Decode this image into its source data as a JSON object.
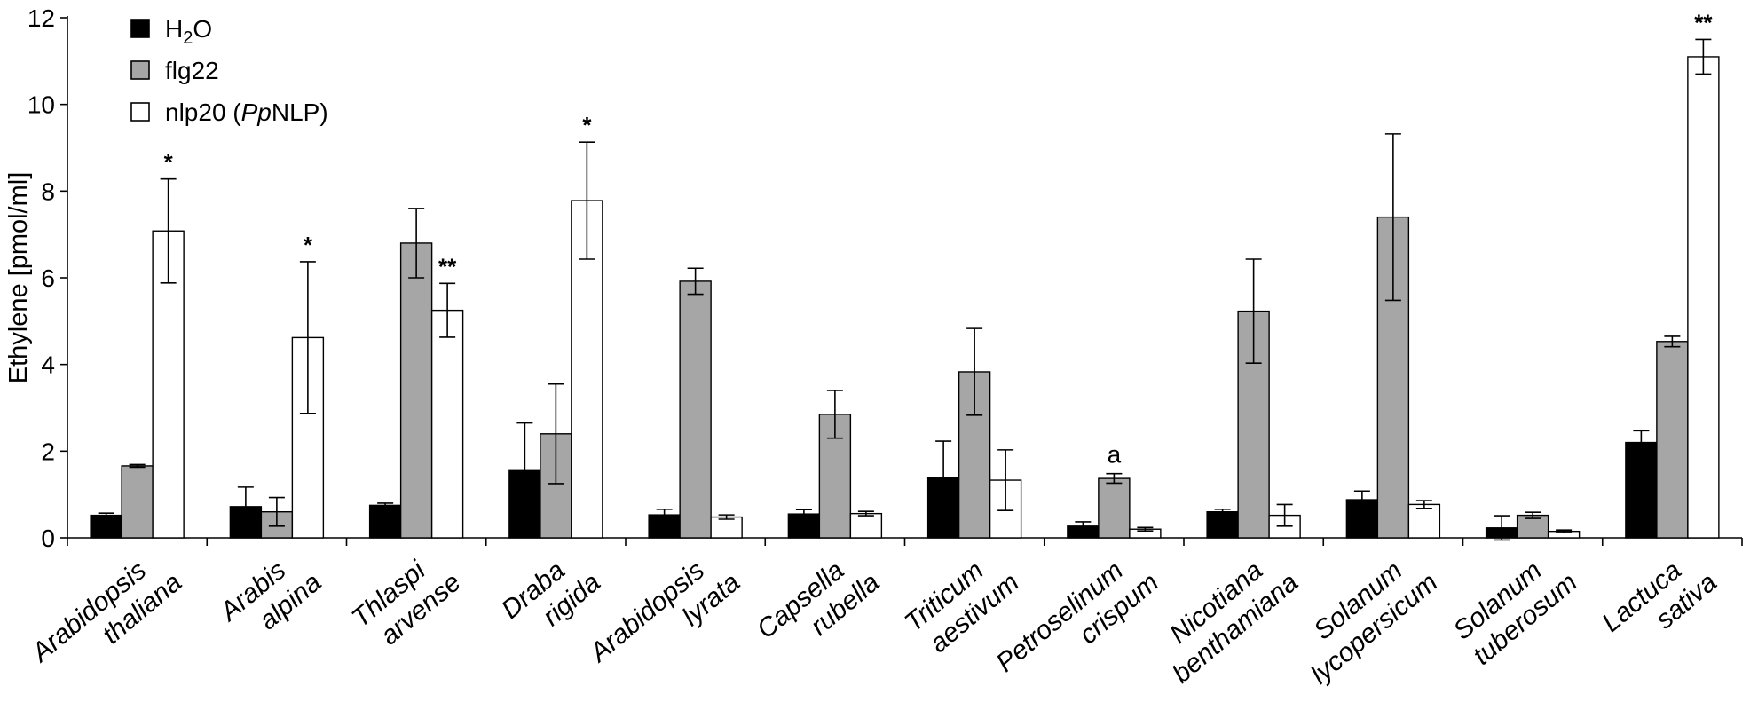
{
  "chart_data": {
    "type": "bar",
    "ylabel": "Ethylene [pmol/ml]",
    "xlabel": "",
    "ylim": [
      0,
      12
    ],
    "yticks": [
      "0",
      "2",
      "4",
      "6",
      "8",
      "10",
      "12"
    ],
    "legend_position": "top-left",
    "categories": [
      [
        "Arabidopsis",
        "thaliana"
      ],
      [
        "Arabis",
        "alpina"
      ],
      [
        "Thlaspi",
        "arvense"
      ],
      [
        "Draba",
        "rigida"
      ],
      [
        "Arabidopsis",
        "lyrata"
      ],
      [
        "Capsella",
        "rubella"
      ],
      [
        "Triticum",
        "aestivum"
      ],
      [
        "Petroselinum",
        "crispum"
      ],
      [
        "Nicotiana",
        "benthamiana"
      ],
      [
        "Solanum",
        "lycopersicum"
      ],
      [
        "Solanum",
        "tuberosum"
      ],
      [
        "Lactuca",
        "sativa"
      ]
    ],
    "series": [
      {
        "name": "H2O",
        "legend_parts": [
          {
            "t": "H"
          },
          {
            "t": "2",
            "sub": true
          },
          {
            "t": "O"
          }
        ],
        "color": "#000000",
        "values": [
          0.52,
          0.72,
          0.75,
          1.55,
          0.53,
          0.55,
          1.38,
          0.27,
          0.6,
          0.88,
          0.23,
          2.2
        ],
        "errors": [
          0.05,
          0.45,
          0.05,
          1.1,
          0.13,
          0.1,
          0.85,
          0.1,
          0.06,
          0.2,
          0.28,
          0.27
        ]
      },
      {
        "name": "flg22",
        "legend_parts": [
          {
            "t": "flg22"
          }
        ],
        "color": "#a6a6a6",
        "values": [
          1.66,
          0.6,
          6.8,
          2.4,
          5.92,
          2.85,
          3.83,
          1.37,
          5.23,
          7.4,
          0.52,
          4.53
        ],
        "errors": [
          0.03,
          0.33,
          0.8,
          1.15,
          0.3,
          0.55,
          1.0,
          0.11,
          1.2,
          1.92,
          0.07,
          0.12
        ]
      },
      {
        "name": "nlp20 (PpNLP)",
        "legend_parts": [
          {
            "t": "nlp20 ("
          },
          {
            "t": "Pp",
            "italic": true
          },
          {
            "t": "NLP)"
          }
        ],
        "color": "#ffffff",
        "values": [
          7.08,
          4.62,
          5.25,
          7.78,
          0.48,
          0.56,
          1.33,
          0.2,
          0.52,
          0.77,
          0.15,
          11.1
        ],
        "errors": [
          1.2,
          1.75,
          0.62,
          1.35,
          0.05,
          0.05,
          0.7,
          0.04,
          0.25,
          0.09,
          0.03,
          0.4
        ]
      }
    ],
    "annotations": [
      {
        "category": 0,
        "series": 2,
        "text": "*"
      },
      {
        "category": 1,
        "series": 2,
        "text": "*"
      },
      {
        "category": 2,
        "series": 2,
        "text": "**"
      },
      {
        "category": 3,
        "series": 2,
        "text": "*"
      },
      {
        "category": 7,
        "series": 1,
        "text": "a"
      },
      {
        "category": 11,
        "series": 2,
        "text": "**"
      }
    ]
  }
}
